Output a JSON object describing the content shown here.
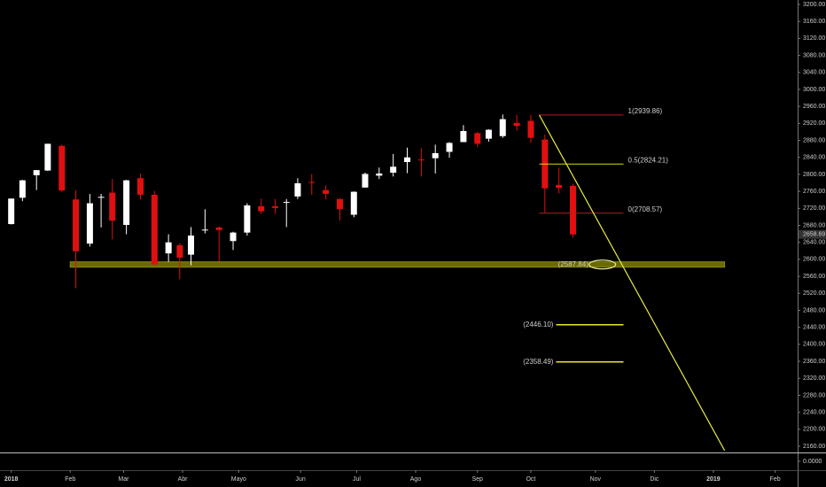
{
  "chart_data": {
    "type": "candlestick",
    "x": [
      0,
      4,
      9,
      13,
      18,
      23,
      28,
      32,
      36,
      41,
      46,
      51,
      56,
      60,
      64,
      69,
      74,
      79,
      84,
      89,
      94,
      98,
      102,
      107,
      112,
      117,
      122,
      126,
      131,
      136,
      141,
      146,
      151,
      156,
      161,
      166,
      170,
      175,
      180,
      185,
      190,
      195,
      200
    ],
    "open": [
      2683,
      2745,
      2798,
      2809,
      2867,
      2741,
      2637,
      2745,
      2757,
      2681,
      2791,
      2752,
      2614,
      2633,
      2611,
      2670,
      2675,
      2643,
      2663,
      2725,
      2725,
      2734,
      2748,
      2782,
      2763,
      2742,
      2705,
      2769,
      2797,
      2804,
      2829,
      2835,
      2838,
      2853,
      2876,
      2897,
      2884,
      2890,
      2921,
      2926,
      2882,
      2775,
      2773
    ],
    "high": [
      2743,
      2787,
      2810,
      2872,
      2870,
      2763,
      2754,
      2754,
      2789,
      2787,
      2802,
      2761,
      2659,
      2638,
      2676,
      2718,
      2677,
      2665,
      2732,
      2743,
      2742,
      2742,
      2791,
      2801,
      2774,
      2744,
      2760,
      2804,
      2816,
      2848,
      2863,
      2862,
      2870,
      2876,
      2916,
      2900,
      2906,
      2941,
      2940,
      2940,
      2894,
      2816,
      2778
    ],
    "low": [
      2682,
      2737,
      2763,
      2808,
      2759,
      2532,
      2630,
      2675,
      2647,
      2659,
      2741,
      2585,
      2594,
      2553,
      2586,
      2661,
      2594,
      2622,
      2656,
      2707,
      2707,
      2676,
      2742,
      2752,
      2741,
      2691,
      2699,
      2769,
      2789,
      2795,
      2803,
      2795,
      2802,
      2839,
      2876,
      2864,
      2877,
      2886,
      2903,
      2874,
      2710,
      2755,
      2651
    ],
    "close": [
      2743,
      2786,
      2810,
      2872,
      2762,
      2619,
      2732,
      2747,
      2691,
      2786,
      2752,
      2588,
      2640,
      2604,
      2656,
      2670,
      2669,
      2663,
      2727,
      2713,
      2721,
      2735,
      2779,
      2780,
      2754,
      2718,
      2759,
      2801,
      2802,
      2818,
      2840,
      2833,
      2850,
      2874,
      2902,
      2872,
      2905,
      2930,
      2914,
      2886,
      2767,
      2768,
      2658.69
    ],
    "up_color": "#ffffff",
    "down_color": "#e01010",
    "last_price": 2658.69,
    "xlim": [
      -4,
      280
    ],
    "ylim": [
      2160,
      3200
    ],
    "xticks": [
      {
        "value": 0,
        "label": "2018"
      },
      {
        "value": 21,
        "label": "Feb"
      },
      {
        "value": 40,
        "label": "Mar"
      },
      {
        "value": 61,
        "label": "Abr"
      },
      {
        "value": 81,
        "label": "Mayo"
      },
      {
        "value": 103,
        "label": "Jun"
      },
      {
        "value": 123,
        "label": "Jul"
      },
      {
        "value": 144,
        "label": "Ago"
      },
      {
        "value": 166,
        "label": "Sep"
      },
      {
        "value": 185,
        "label": "Oct"
      },
      {
        "value": 208,
        "label": "Nov"
      },
      {
        "value": 229,
        "label": "Dic"
      },
      {
        "value": 250,
        "label": "2019"
      },
      {
        "value": 272,
        "label": "Feb"
      }
    ],
    "yticks": [
      {
        "value": 2160,
        "label": "2160.00"
      },
      {
        "value": 2200,
        "label": "2200.00"
      },
      {
        "value": 2240,
        "label": "2240.00"
      },
      {
        "value": 2280,
        "label": "2280.00"
      },
      {
        "value": 2320,
        "label": "2320.00"
      },
      {
        "value": 2360,
        "label": "2360.00"
      },
      {
        "value": 2400,
        "label": "2400.00"
      },
      {
        "value": 2440,
        "label": "2440.00"
      },
      {
        "value": 2480,
        "label": "2480.00"
      },
      {
        "value": 2520,
        "label": "2520.00"
      },
      {
        "value": 2560,
        "label": "2560.00"
      },
      {
        "value": 2600,
        "label": "2600.00"
      },
      {
        "value": 2640,
        "label": "2640.00"
      },
      {
        "value": 2680,
        "label": "2680.00"
      },
      {
        "value": 2720,
        "label": "2720.00"
      },
      {
        "value": 2760,
        "label": "2760.00"
      },
      {
        "value": 2800,
        "label": "2800.00"
      },
      {
        "value": 2840,
        "label": "2840.00"
      },
      {
        "value": 2880,
        "label": "2880.00"
      },
      {
        "value": 2920,
        "label": "2920.00"
      },
      {
        "value": 2960,
        "label": "2960.00"
      },
      {
        "value": 3000,
        "label": "3000.00"
      },
      {
        "value": 3040,
        "label": "3040.00"
      },
      {
        "value": 3080,
        "label": "3080.00"
      },
      {
        "value": 3120,
        "label": "3120.00"
      },
      {
        "value": 3160,
        "label": "3160.00"
      },
      {
        "value": 3200,
        "label": "3200.00"
      }
    ],
    "lower_pane_ticks": [
      {
        "value": 0,
        "label": "0.0000"
      }
    ],
    "fib_levels": [
      {
        "label": "1(2939.86)",
        "value": 2939.86,
        "color": "#b02020",
        "x": [
          188,
          218
        ]
      },
      {
        "label": "0.5(2824.21)",
        "value": 2824.21,
        "color": "#d8d820",
        "x": [
          188,
          218
        ]
      },
      {
        "label": "0(2708.57)",
        "value": 2708.57,
        "color": "#b02020",
        "x": [
          188,
          218
        ]
      }
    ],
    "support": {
      "label": "(2587.84)",
      "value": 2587.84,
      "color": "#6a6a00",
      "x": [
        21,
        254
      ]
    },
    "targets": [
      {
        "label": "(2446.10)",
        "value": 2446.1,
        "color": "#e8e820",
        "x": [
          194,
          218
        ]
      },
      {
        "label": "(2358.49)",
        "value": 2358.49,
        "color": "#e8e820",
        "x": [
          194,
          218
        ]
      }
    ],
    "trendline": {
      "x": [
        188,
        254
      ],
      "y": [
        2939.86,
        2150
      ],
      "color": "#e8e84a"
    }
  }
}
